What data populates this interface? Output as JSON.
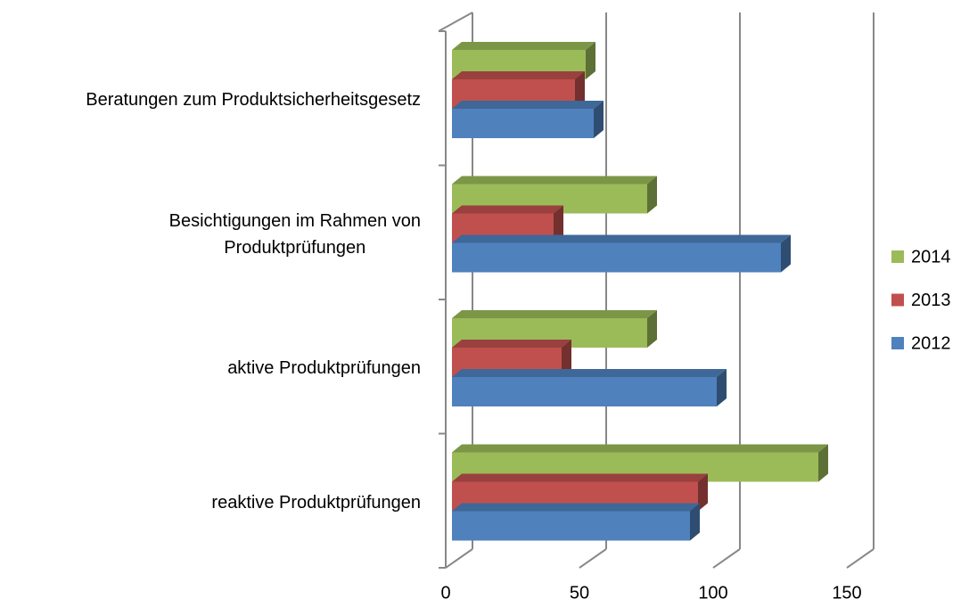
{
  "chart_data": {
    "type": "bar3d_horizontal",
    "categories": [
      "Beratungen zum Produktsicherheitsgesetz",
      "Besichtigungen im Rahmen von\nProduktprüfungen",
      "aktive Produktprüfungen",
      "reaktive Produktprüfungen"
    ],
    "series": [
      {
        "name": "2012",
        "color": "#4f81bd",
        "values": [
          53,
          123,
          99,
          89
        ]
      },
      {
        "name": "2013",
        "color": "#c0504d",
        "values": [
          46,
          38,
          41,
          92
        ]
      },
      {
        "name": "2014",
        "color": "#9bbb59",
        "values": [
          50,
          73,
          73,
          137
        ]
      }
    ],
    "xlim": [
      0,
      150
    ],
    "xticks": [
      0,
      50,
      100,
      150
    ],
    "grid": true,
    "legend": "right"
  }
}
